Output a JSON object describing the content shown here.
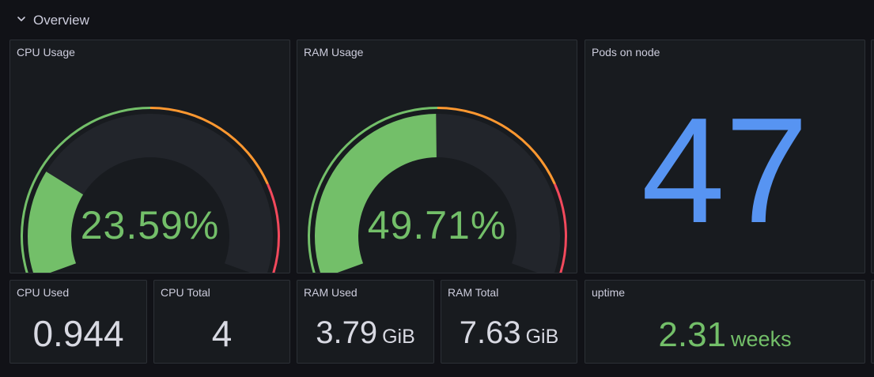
{
  "row": {
    "title": "Overview",
    "icon": "chevron-down-icon"
  },
  "colors": {
    "background": "#111217",
    "panel": "#181b1f",
    "green": "#73bf69",
    "orange": "#ff9830",
    "red": "#f2495c",
    "blue": "#5794f2",
    "track": "#22252b"
  },
  "panels": {
    "cpu_usage": {
      "title": "CPU Usage",
      "value": "23.59%",
      "percent": 23.59
    },
    "ram_usage": {
      "title": "RAM Usage",
      "value": "49.71%",
      "percent": 49.71
    },
    "pods": {
      "title": "Pods on node",
      "value": "47"
    },
    "cpu_used": {
      "title": "CPU Used",
      "value": "0.944"
    },
    "cpu_total": {
      "title": "CPU Total",
      "value": "4"
    },
    "ram_used": {
      "title": "RAM Used",
      "value": "3.79",
      "unit": "GiB"
    },
    "ram_total": {
      "title": "RAM Total",
      "value": "7.63",
      "unit": "GiB"
    },
    "uptime": {
      "title": "uptime",
      "value": "2.31",
      "unit": "weeks"
    }
  }
}
